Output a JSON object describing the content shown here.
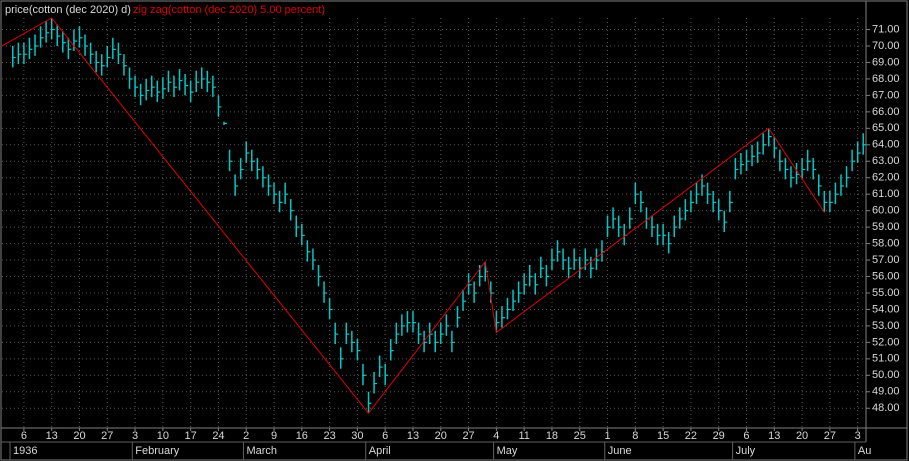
{
  "chart_data": {
    "type": "ohlc",
    "series": [
      {
        "name": "price(cotton (dec 2020) d)",
        "color": "#00c8c8",
        "high": [
          70.0,
          70.2,
          70.2,
          70.5,
          70.7,
          71.2,
          71.5,
          71.7,
          71.3,
          70.9,
          70.5,
          71.0,
          71.2,
          70.7,
          70.2,
          69.7,
          69.5,
          70.0,
          70.5,
          70.2,
          69.5,
          68.7,
          68.2,
          67.7,
          68.0,
          68.2,
          67.9,
          68.1,
          68.5,
          68.2,
          68.6,
          68.3,
          67.9,
          68.5,
          68.7,
          68.5,
          68.2,
          67.0,
          65.4,
          63.7,
          62.2,
          63.2,
          64.2,
          63.7,
          63.2,
          62.7,
          62.2,
          61.7,
          61.2,
          61.7,
          60.7,
          59.7,
          59.2,
          58.2,
          57.7,
          56.7,
          55.7,
          54.7,
          53.2,
          51.7,
          53.2,
          52.7,
          52.2,
          50.7,
          49.0,
          50.2,
          51.2,
          50.7,
          52.2,
          53.2,
          53.7,
          53.9,
          53.9,
          53.2,
          52.7,
          53.2,
          52.7,
          53.2,
          53.7,
          52.7,
          54.2,
          55.2,
          56.2,
          55.7,
          56.7,
          56.9,
          55.7,
          53.9,
          54.2,
          54.7,
          55.2,
          55.7,
          56.2,
          56.7,
          56.2,
          57.2,
          56.7,
          57.7,
          58.2,
          57.7,
          57.2,
          57.7,
          57.2,
          57.7,
          57.2,
          57.7,
          58.2,
          59.7,
          60.2,
          59.7,
          59.2,
          60.2,
          61.7,
          61.2,
          60.2,
          59.7,
          59.2,
          59.2,
          58.7,
          59.7,
          60.2,
          60.7,
          61.2,
          61.7,
          62.2,
          61.7,
          61.2,
          60.7,
          60.0,
          61.2,
          63.2,
          63.5,
          63.7,
          64.0,
          64.2,
          64.7,
          65.0,
          64.5,
          63.7,
          63.2,
          62.7,
          62.9,
          63.2,
          63.7,
          63.2,
          62.2,
          61.2,
          61.2,
          61.7,
          62.2,
          62.7,
          63.7,
          64.2,
          64.7
        ],
        "low": [
          68.7,
          68.9,
          68.9,
          69.2,
          69.4,
          69.9,
          70.2,
          70.4,
          70.0,
          69.6,
          69.2,
          69.7,
          69.9,
          69.4,
          68.9,
          68.4,
          68.2,
          68.7,
          69.2,
          68.9,
          68.2,
          67.4,
          66.9,
          66.4,
          66.7,
          66.9,
          66.6,
          66.8,
          67.2,
          66.9,
          67.3,
          67.0,
          66.6,
          67.2,
          67.4,
          67.2,
          66.9,
          65.7,
          65.2,
          62.4,
          60.9,
          61.9,
          62.9,
          62.4,
          61.9,
          61.4,
          60.9,
          60.4,
          59.9,
          60.4,
          59.4,
          58.4,
          57.9,
          56.9,
          56.4,
          55.4,
          54.4,
          53.4,
          51.9,
          50.4,
          51.9,
          51.4,
          50.9,
          49.4,
          47.7,
          48.9,
          49.9,
          49.4,
          50.9,
          51.9,
          52.4,
          52.6,
          52.6,
          51.9,
          51.4,
          51.9,
          51.4,
          51.9,
          52.4,
          51.4,
          52.9,
          53.9,
          54.9,
          54.4,
          55.4,
          55.7,
          54.4,
          52.6,
          52.9,
          53.4,
          53.9,
          54.4,
          54.9,
          55.4,
          54.9,
          55.9,
          55.4,
          56.4,
          56.9,
          56.4,
          55.9,
          56.4,
          55.9,
          56.4,
          55.9,
          56.4,
          56.9,
          58.4,
          58.9,
          58.4,
          57.9,
          58.9,
          60.4,
          59.9,
          58.9,
          58.4,
          57.9,
          57.9,
          57.4,
          58.4,
          58.9,
          59.4,
          59.9,
          60.4,
          60.9,
          60.4,
          59.9,
          59.4,
          58.7,
          59.9,
          61.9,
          62.2,
          62.4,
          62.7,
          62.9,
          63.4,
          63.9,
          63.2,
          62.4,
          61.9,
          61.4,
          61.6,
          61.9,
          62.4,
          61.9,
          60.9,
          59.9,
          59.9,
          60.4,
          60.9,
          61.4,
          62.4,
          62.9,
          63.4
        ],
        "close": [
          69.3,
          69.5,
          69.5,
          69.8,
          70.0,
          70.5,
          70.8,
          71.0,
          70.6,
          70.2,
          69.8,
          70.3,
          70.5,
          70.0,
          69.5,
          69.0,
          68.8,
          69.3,
          69.8,
          69.5,
          68.8,
          68.0,
          67.5,
          67.0,
          67.3,
          67.5,
          67.2,
          67.4,
          67.8,
          67.5,
          67.9,
          67.6,
          67.2,
          67.8,
          68.0,
          67.8,
          67.5,
          66.3,
          65.3,
          63.0,
          61.5,
          62.5,
          63.5,
          63.0,
          62.5,
          62.0,
          61.5,
          61.0,
          60.5,
          61.0,
          60.0,
          59.0,
          58.5,
          57.5,
          57.0,
          56.0,
          55.0,
          54.0,
          52.5,
          51.0,
          52.5,
          52.0,
          51.5,
          50.0,
          48.3,
          49.5,
          50.5,
          50.0,
          51.5,
          52.5,
          53.0,
          53.2,
          53.2,
          52.5,
          52.0,
          52.5,
          52.0,
          52.5,
          53.0,
          52.0,
          53.5,
          54.5,
          55.5,
          55.0,
          56.0,
          56.3,
          55.0,
          53.2,
          53.5,
          54.0,
          54.5,
          55.0,
          55.5,
          56.0,
          55.5,
          56.5,
          56.0,
          57.0,
          57.5,
          57.0,
          56.5,
          57.0,
          56.5,
          57.0,
          56.5,
          57.0,
          57.5,
          59.0,
          59.5,
          59.0,
          58.5,
          59.5,
          61.0,
          60.5,
          59.5,
          59.0,
          58.5,
          58.5,
          58.0,
          59.0,
          59.5,
          60.0,
          60.5,
          61.0,
          61.5,
          61.0,
          60.5,
          60.0,
          59.3,
          60.5,
          62.5,
          62.8,
          63.0,
          63.3,
          63.5,
          64.0,
          64.5,
          63.8,
          63.0,
          62.5,
          62.0,
          62.2,
          62.5,
          63.0,
          62.5,
          61.5,
          60.5,
          60.5,
          61.0,
          61.5,
          62.0,
          63.0,
          63.5,
          64.0
        ]
      },
      {
        "name": "zig zag(cotton (dec 2020) 5.00 percent)",
        "color": "#e00000",
        "x": [
          0,
          7,
          64,
          85,
          87,
          136,
          146
        ],
        "values": [
          70.0,
          71.7,
          47.7,
          56.9,
          52.6,
          65.0,
          59.9
        ]
      }
    ],
    "categories": [
      null,
      null,
      "6",
      null,
      null,
      null,
      null,
      "13",
      null,
      null,
      null,
      null,
      "20",
      null,
      null,
      null,
      null,
      "27",
      null,
      null,
      null,
      null,
      "3",
      null,
      null,
      null,
      null,
      "10",
      null,
      null,
      null,
      null,
      "17",
      null,
      null,
      null,
      null,
      "24",
      null,
      null,
      null,
      null,
      "2",
      null,
      null,
      null,
      null,
      "9",
      null,
      null,
      null,
      null,
      "16",
      null,
      null,
      null,
      null,
      "23",
      null,
      null,
      null,
      null,
      "30",
      null,
      null,
      null,
      null,
      "6",
      null,
      null,
      null,
      null,
      "13",
      null,
      null,
      null,
      null,
      "20",
      null,
      null,
      null,
      null,
      "27",
      null,
      null,
      null,
      null,
      "4",
      null,
      null,
      null,
      null,
      "11",
      null,
      null,
      null,
      null,
      "18",
      null,
      null,
      null,
      null,
      "25",
      null,
      null,
      null,
      null,
      "1",
      null,
      null,
      null,
      null,
      "8",
      null,
      null,
      null,
      null,
      "15",
      null,
      null,
      null,
      null,
      "22",
      null,
      null,
      null,
      null,
      "29",
      null,
      null,
      null,
      null,
      "6",
      null,
      null,
      null,
      null,
      "13",
      null,
      null,
      null,
      null,
      "20",
      null,
      null,
      null,
      null,
      "27",
      null,
      null,
      null,
      null,
      "3",
      null
    ],
    "month_labels": [
      {
        "label": "1936",
        "category": 0
      },
      {
        "label": "February",
        "category": 22
      },
      {
        "label": "March",
        "category": 42
      },
      {
        "label": "April",
        "category": 64
      },
      {
        "label": "May",
        "category": 87
      },
      {
        "label": "June",
        "category": 107
      },
      {
        "label": "July",
        "category": 130
      },
      {
        "label": "Au",
        "category": 152
      }
    ],
    "ylim": [
      46.8,
      71.7
    ],
    "yticks": [
      {
        "value": 48,
        "label": "48.00"
      },
      {
        "value": 49,
        "label": "49.00"
      },
      {
        "value": 50,
        "label": "50.00"
      },
      {
        "value": 51,
        "label": "51.00"
      },
      {
        "value": 52,
        "label": "52.00"
      },
      {
        "value": 53,
        "label": "53.00"
      },
      {
        "value": 54,
        "label": "54.00"
      },
      {
        "value": 55,
        "label": "55.00"
      },
      {
        "value": 56,
        "label": "56.00"
      },
      {
        "value": 57,
        "label": "57.00"
      },
      {
        "value": 58,
        "label": "58.00"
      },
      {
        "value": 59,
        "label": "59.00"
      },
      {
        "value": 60,
        "label": "60.00"
      },
      {
        "value": 61,
        "label": "61.00"
      },
      {
        "value": 62,
        "label": "62.00"
      },
      {
        "value": 63,
        "label": "63.00"
      },
      {
        "value": 64,
        "label": "64.00"
      },
      {
        "value": 65,
        "label": "65.00"
      },
      {
        "value": 66,
        "label": "66.00"
      },
      {
        "value": 67,
        "label": "67.00"
      },
      {
        "value": 68,
        "label": "68.00"
      },
      {
        "value": 69,
        "label": "69.00"
      },
      {
        "value": 70,
        "label": "70.00"
      },
      {
        "value": 71,
        "label": "71.00"
      }
    ],
    "grid": true
  }
}
